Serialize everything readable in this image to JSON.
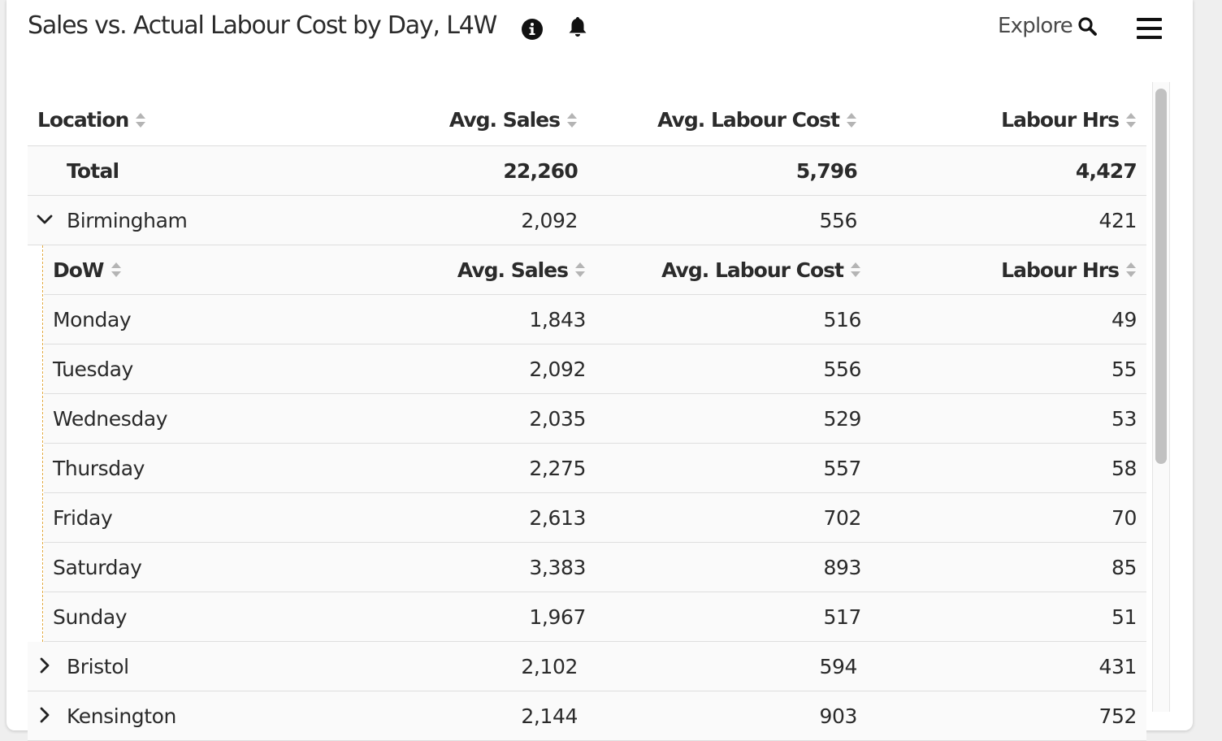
{
  "widget": {
    "title": "Sales vs. Actual Labour Cost by Day, L4W",
    "explore_label": "Explore"
  },
  "table": {
    "headers": {
      "location": "Location",
      "sales": "Avg. Sales",
      "cost": "Avg. Labour Cost",
      "hrs": "Labour Hrs"
    },
    "total": {
      "label": "Total",
      "sales": "22,260",
      "cost": "5,796",
      "hrs": "4,427"
    },
    "groups": [
      {
        "name": "Birmingham",
        "sales": "2,092",
        "cost": "556",
        "hrs": "421",
        "expanded": true,
        "subheaders": {
          "dow": "DoW",
          "sales": "Avg. Sales",
          "cost": "Avg. Labour Cost",
          "hrs": "Labour Hrs"
        },
        "days": [
          {
            "day": "Monday",
            "sales": "1,843",
            "cost": "516",
            "hrs": "49"
          },
          {
            "day": "Tuesday",
            "sales": "2,092",
            "cost": "556",
            "hrs": "55"
          },
          {
            "day": "Wednesday",
            "sales": "2,035",
            "cost": "529",
            "hrs": "53"
          },
          {
            "day": "Thursday",
            "sales": "2,275",
            "cost": "557",
            "hrs": "58"
          },
          {
            "day": "Friday",
            "sales": "2,613",
            "cost": "702",
            "hrs": "70"
          },
          {
            "day": "Saturday",
            "sales": "3,383",
            "cost": "893",
            "hrs": "85"
          },
          {
            "day": "Sunday",
            "sales": "1,967",
            "cost": "517",
            "hrs": "51"
          }
        ]
      },
      {
        "name": "Bristol",
        "sales": "2,102",
        "cost": "594",
        "hrs": "431",
        "expanded": false
      },
      {
        "name": "Kensington",
        "sales": "2,144",
        "cost": "903",
        "hrs": "752",
        "expanded": false
      }
    ]
  },
  "icons": {
    "info": "info-icon",
    "bell": "bell-icon",
    "search": "search-icon",
    "menu": "hamburger-menu-icon",
    "sort": "sort-icon",
    "expand": "chevron-right-icon",
    "collapse": "chevron-down-icon"
  },
  "colors": {
    "tree_guide": "#e1a93f",
    "row_background": "#fafafa",
    "scrollbar_thumb": "#c1c1c1"
  }
}
